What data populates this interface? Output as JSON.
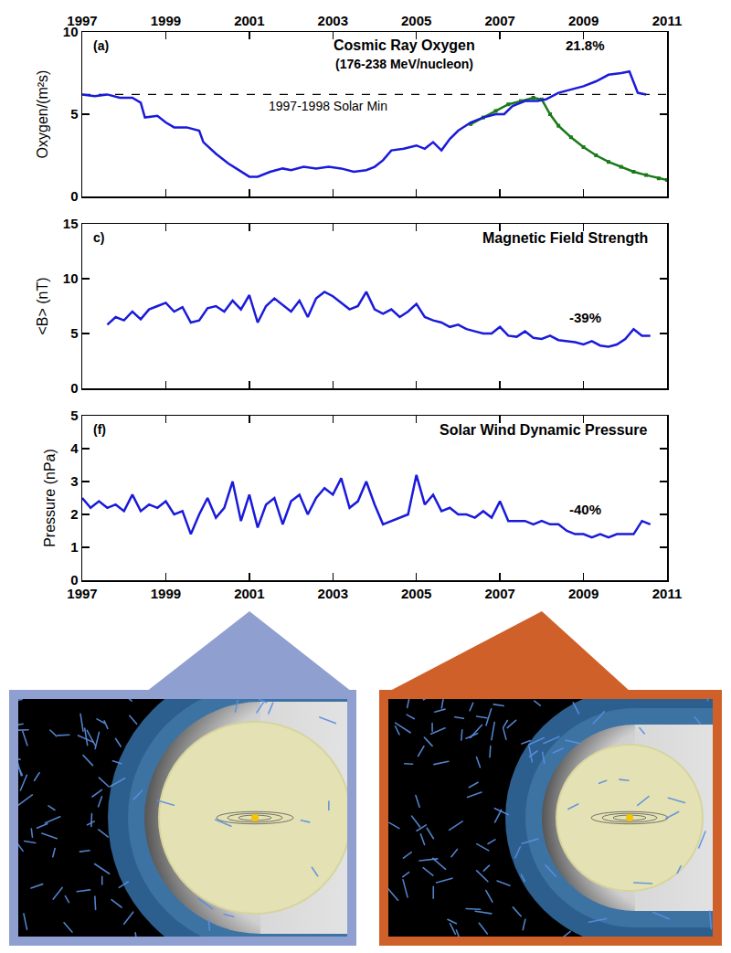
{
  "chart_data": [
    {
      "type": "line",
      "panel_label": "(a)",
      "title": "Cosmic Ray Oxygen",
      "subtitle": "(176-238 MeV/nucleon)",
      "ylabel": "Oxygen/(m²s)",
      "xlim": [
        1997,
        2011
      ],
      "xticks": [
        1997,
        1999,
        2001,
        2003,
        2005,
        2007,
        2009,
        2011
      ],
      "ylim": [
        0,
        10
      ],
      "yticks": [
        0,
        5,
        10
      ],
      "annotations": [
        "21.8%"
      ],
      "series": [
        {
          "name": "1997-1998 Solar Min",
          "color": "#000000",
          "line_style": "dashed",
          "x": [
            1997,
            2011
          ],
          "values": [
            6.2,
            6.2
          ]
        },
        {
          "color": "#1a7a1a",
          "marker": "square",
          "x": [
            2006.3,
            2006.6,
            2006.9,
            2007.2,
            2007.5,
            2007.8,
            2008.0,
            2008.2,
            2008.4,
            2008.7,
            2009.0,
            2009.3,
            2009.6,
            2009.9,
            2010.2,
            2010.5,
            2010.8,
            2011.0
          ],
          "values": [
            4.4,
            4.8,
            5.2,
            5.6,
            5.8,
            6.0,
            5.9,
            5.0,
            4.3,
            3.6,
            3.0,
            2.5,
            2.1,
            1.8,
            1.5,
            1.3,
            1.1,
            1.0
          ]
        },
        {
          "color": "#1a1adb",
          "x": [
            1997.0,
            1997.3,
            1997.6,
            1997.9,
            1998.2,
            1998.4,
            1998.5,
            1998.8,
            1999.0,
            1999.2,
            1999.5,
            1999.8,
            1999.9,
            2000.2,
            2000.5,
            2000.8,
            2001.0,
            2001.2,
            2001.5,
            2001.8,
            2002.0,
            2002.3,
            2002.6,
            2002.9,
            2003.2,
            2003.5,
            2003.8,
            2004.0,
            2004.2,
            2004.4,
            2004.7,
            2005.0,
            2005.2,
            2005.4,
            2005.6,
            2005.8,
            2006.0,
            2006.3,
            2006.6,
            2006.9,
            2007.1,
            2007.3,
            2007.6,
            2007.9,
            2008.1,
            2008.4,
            2008.7,
            2009.0,
            2009.3,
            2009.6,
            2009.9,
            2010.1,
            2010.3,
            2010.5
          ],
          "values": [
            6.2,
            6.1,
            6.2,
            6.0,
            6.0,
            5.7,
            4.8,
            4.9,
            4.5,
            4.2,
            4.2,
            4.0,
            3.3,
            2.6,
            2.0,
            1.5,
            1.2,
            1.2,
            1.5,
            1.7,
            1.6,
            1.8,
            1.7,
            1.8,
            1.7,
            1.5,
            1.6,
            1.8,
            2.2,
            2.8,
            2.9,
            3.1,
            2.9,
            3.3,
            2.8,
            3.5,
            4.0,
            4.5,
            4.8,
            5.0,
            5.0,
            5.5,
            5.8,
            5.8,
            5.9,
            6.3,
            6.5,
            6.7,
            7.0,
            7.4,
            7.5,
            7.6,
            6.3,
            6.2
          ]
        }
      ]
    },
    {
      "type": "line",
      "panel_label": "c)",
      "title": "Magnetic Field Strength",
      "ylabel": "<B> (nT)",
      "tick_labels": "y",
      "xlim": [
        1997,
        2011
      ],
      "xticks": [
        1997,
        1999,
        2001,
        2003,
        2005,
        2007,
        2009,
        2011
      ],
      "ylim": [
        0,
        15
      ],
      "yticks": [
        0,
        5,
        10,
        15
      ],
      "annotations": [
        "-39%"
      ],
      "series": [
        {
          "color": "#1a1adb",
          "x": [
            1997.6,
            1997.8,
            1998.0,
            1998.2,
            1998.4,
            1998.6,
            1998.8,
            1999.0,
            1999.2,
            1999.4,
            1999.6,
            1999.8,
            2000.0,
            2000.2,
            2000.4,
            2000.6,
            2000.8,
            2001.0,
            2001.2,
            2001.4,
            2001.6,
            2001.8,
            2002.0,
            2002.2,
            2002.4,
            2002.6,
            2002.8,
            2003.0,
            2003.2,
            2003.4,
            2003.6,
            2003.8,
            2004.0,
            2004.2,
            2004.4,
            2004.6,
            2004.8,
            2005.0,
            2005.2,
            2005.4,
            2005.6,
            2005.8,
            2006.0,
            2006.2,
            2006.4,
            2006.6,
            2006.8,
            2007.0,
            2007.2,
            2007.4,
            2007.6,
            2007.8,
            2008.0,
            2008.2,
            2008.4,
            2008.6,
            2008.8,
            2009.0,
            2009.2,
            2009.4,
            2009.6,
            2009.8,
            2010.0,
            2010.2,
            2010.4,
            2010.6
          ],
          "values": [
            5.8,
            6.5,
            6.2,
            7.0,
            6.3,
            7.2,
            7.5,
            7.8,
            7.0,
            7.4,
            6.0,
            6.2,
            7.3,
            7.5,
            7.0,
            8.0,
            7.2,
            8.5,
            6.0,
            7.5,
            8.2,
            7.6,
            7.0,
            8.0,
            6.5,
            8.2,
            8.8,
            8.4,
            7.8,
            7.2,
            7.5,
            8.8,
            7.2,
            6.8,
            7.2,
            6.5,
            7.0,
            7.7,
            6.5,
            6.2,
            6.0,
            5.6,
            5.8,
            5.4,
            5.2,
            5.0,
            5.0,
            5.6,
            4.8,
            4.7,
            5.2,
            4.6,
            4.5,
            4.8,
            4.4,
            4.3,
            4.2,
            4.0,
            4.3,
            3.9,
            3.8,
            4.0,
            4.5,
            5.4,
            4.8,
            4.8
          ]
        }
      ]
    },
    {
      "type": "line",
      "panel_label": "(f)",
      "title": "Solar Wind Dynamic Pressure",
      "ylabel": "Pressure (nPa)",
      "xlim": [
        1997,
        2011
      ],
      "xticks": [
        1997,
        1999,
        2001,
        2003,
        2005,
        2007,
        2009,
        2011
      ],
      "ylim": [
        0,
        5
      ],
      "yticks": [
        0,
        1,
        2,
        3,
        4,
        5
      ],
      "annotations": [
        "-40%"
      ],
      "series": [
        {
          "color": "#1a1adb",
          "x": [
            1997.0,
            1997.2,
            1997.4,
            1997.6,
            1997.8,
            1998.0,
            1998.2,
            1998.4,
            1998.6,
            1998.8,
            1999.0,
            1999.2,
            1999.4,
            1999.6,
            1999.8,
            2000.0,
            2000.2,
            2000.4,
            2000.6,
            2000.8,
            2001.0,
            2001.2,
            2001.4,
            2001.6,
            2001.8,
            2002.0,
            2002.2,
            2002.4,
            2002.6,
            2002.8,
            2003.0,
            2003.2,
            2003.4,
            2003.6,
            2003.8,
            2004.0,
            2004.2,
            2004.4,
            2004.6,
            2004.8,
            2005.0,
            2005.2,
            2005.4,
            2005.6,
            2005.8,
            2006.0,
            2006.2,
            2006.4,
            2006.6,
            2006.8,
            2007.0,
            2007.2,
            2007.4,
            2007.6,
            2007.8,
            2008.0,
            2008.2,
            2008.4,
            2008.6,
            2008.8,
            2009.0,
            2009.2,
            2009.4,
            2009.6,
            2009.8,
            2010.0,
            2010.2,
            2010.4,
            2010.6
          ],
          "values": [
            2.5,
            2.2,
            2.4,
            2.2,
            2.3,
            2.1,
            2.6,
            2.1,
            2.3,
            2.2,
            2.4,
            2.0,
            2.1,
            1.4,
            2.0,
            2.5,
            1.9,
            2.2,
            3.0,
            1.8,
            2.6,
            1.6,
            2.3,
            2.5,
            1.7,
            2.4,
            2.6,
            2.0,
            2.5,
            2.8,
            2.6,
            3.1,
            2.2,
            2.4,
            3.0,
            2.3,
            1.7,
            1.8,
            1.9,
            2.0,
            3.2,
            2.3,
            2.6,
            2.1,
            2.2,
            2.0,
            2.0,
            1.9,
            2.1,
            1.9,
            2.4,
            1.8,
            1.8,
            1.8,
            1.7,
            1.8,
            1.7,
            1.7,
            1.5,
            1.4,
            1.4,
            1.3,
            1.4,
            1.3,
            1.4,
            1.4,
            1.4,
            1.8,
            1.7
          ]
        }
      ]
    }
  ]
}
